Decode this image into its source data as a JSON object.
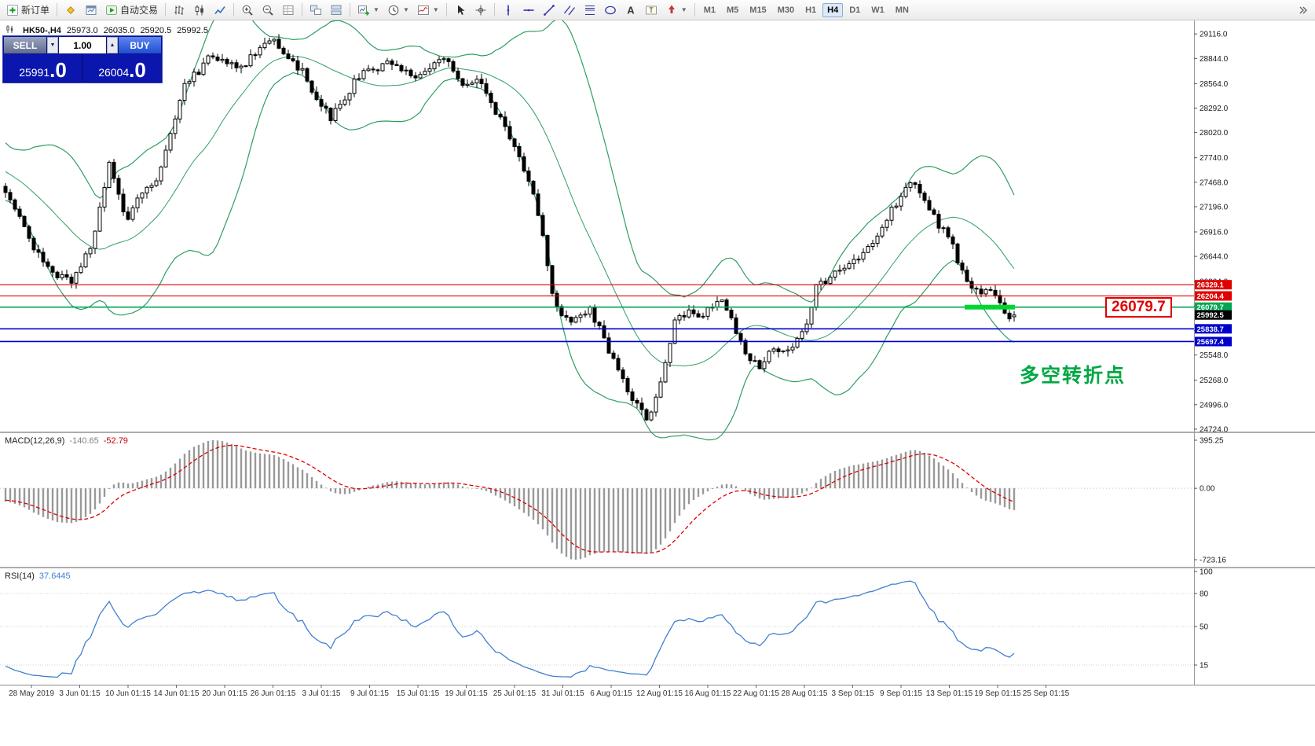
{
  "toolbar": {
    "groups": [
      [
        {
          "name": "new-order-button",
          "icon": "new-order",
          "label": "新订单"
        }
      ],
      [
        {
          "name": "metaeditor-button",
          "icon": "metaeditor"
        },
        {
          "name": "market-watch-button",
          "icon": "market-watch"
        },
        {
          "name": "autotrading-button",
          "icon": "autotrading",
          "label": "自动交易"
        }
      ],
      [
        {
          "name": "bar-chart-button",
          "icon": "bar-chart"
        },
        {
          "name": "candlestick-chart-button",
          "icon": "candlestick"
        },
        {
          "name": "line-chart-button",
          "icon": "line-chart"
        }
      ],
      [
        {
          "name": "zoom-in-button",
          "icon": "zoom-in"
        },
        {
          "name": "zoom-out-button",
          "icon": "zoom-out"
        },
        {
          "name": "indicator-list-button",
          "icon": "grid"
        }
      ],
      [
        {
          "name": "tile-windows-button",
          "icon": "tile-windows"
        },
        {
          "name": "cascade-windows-button",
          "icon": "cascade"
        }
      ],
      [
        {
          "name": "new-chart-button",
          "icon": "new-chart",
          "dropdown": true
        },
        {
          "name": "periods-button",
          "icon": "clock",
          "dropdown": true
        },
        {
          "name": "templates-button",
          "icon": "template",
          "dropdown": true
        }
      ],
      [
        {
          "name": "cursor-button",
          "icon": "cursor"
        },
        {
          "name": "crosshair-button",
          "icon": "crosshair"
        }
      ],
      [
        {
          "name": "vertical-line-button",
          "icon": "vertical-line"
        },
        {
          "name": "horizontal-line-button",
          "icon": "horizontal-line"
        },
        {
          "name": "trendline-button",
          "icon": "trendline"
        },
        {
          "name": "equidistant-channel-button",
          "icon": "channel"
        },
        {
          "name": "fibonacci-button",
          "icon": "fibonacci"
        },
        {
          "name": "shapes-button",
          "icon": "shapes"
        },
        {
          "name": "text-button",
          "icon": "text"
        },
        {
          "name": "text-label-button",
          "icon": "text-label"
        },
        {
          "name": "arrows-button",
          "icon": "arrows",
          "dropdown": true
        }
      ]
    ],
    "timeframes": [
      {
        "label": "M1"
      },
      {
        "label": "M5"
      },
      {
        "label": "M15"
      },
      {
        "label": "M30"
      },
      {
        "label": "H1"
      },
      {
        "label": "H4",
        "active": true
      },
      {
        "label": "D1"
      },
      {
        "label": "W1"
      },
      {
        "label": "MN"
      }
    ]
  },
  "trade_panel": {
    "sell_label": "SELL",
    "buy_label": "BUY",
    "volume": "1.00",
    "sell_price": {
      "head": "25991",
      "tail": ".0"
    },
    "buy_price": {
      "head": "26004",
      "tail": ".0"
    }
  },
  "chart": {
    "header": {
      "title": "HK50-,H4",
      "open": "25973.0",
      "high": "26035.0",
      "low": "25920.5",
      "close": "25992.5"
    }
  },
  "indicators": {
    "macd": {
      "label": "MACD(12,26,9)",
      "value_main": "-140.65",
      "value_signal": "-52.79"
    },
    "rsi": {
      "label": "RSI(14)",
      "value": "37.6445"
    }
  },
  "chart_data": {
    "type": "candlestick",
    "symbol": "HK50-",
    "timeframe": "H4",
    "ohlc_header": {
      "open": 25973.0,
      "high": 26035.0,
      "low": 25920.5,
      "close": 25992.5
    },
    "ylim": [
      24697,
      29266
    ],
    "bars_estimated": 215,
    "y_axis_ticks": [
      29116.0,
      28844.0,
      28564.0,
      28292.0,
      28020.0,
      27740.0,
      27468.0,
      27196.0,
      26916.0,
      26644.0,
      26364.0,
      26092.0,
      25820.0,
      25548.0,
      25268.0,
      24996.0,
      24724.0
    ],
    "x_axis_labels": [
      "28 May 2019",
      "3 Jun 01:15",
      "10 Jun 01:15",
      "14 Jun 01:15",
      "20 Jun 01:15",
      "26 Jun 01:15",
      "3 Jul 01:15",
      "9 Jul 01:15",
      "15 Jul 01:15",
      "19 Jul 01:15",
      "25 Jul 01:15",
      "31 Jul 01:15",
      "6 Aug 01:15",
      "12 Aug 01:15",
      "16 Aug 01:15",
      "22 Aug 01:15",
      "28 Aug 01:15",
      "3 Sep 01:15",
      "9 Sep 01:15",
      "13 Sep 01:15",
      "19 Sep 01:15",
      "25 Sep 01:15"
    ],
    "price_keyframes": [
      [
        -20,
        27950
      ],
      [
        -12,
        27600
      ],
      [
        0,
        27380
      ],
      [
        3,
        27100
      ],
      [
        6,
        26750
      ],
      [
        9,
        26500
      ],
      [
        12,
        26420
      ],
      [
        14,
        26380
      ],
      [
        16,
        26500
      ],
      [
        19,
        26900
      ],
      [
        22,
        27720
      ],
      [
        24,
        27300
      ],
      [
        26,
        27050
      ],
      [
        29,
        27350
      ],
      [
        32,
        27500
      ],
      [
        35,
        28000
      ],
      [
        38,
        28560
      ],
      [
        41,
        28700
      ],
      [
        44,
        28900
      ],
      [
        47,
        28780
      ],
      [
        50,
        28740
      ],
      [
        53,
        28900
      ],
      [
        57,
        29040
      ],
      [
        60,
        28870
      ],
      [
        63,
        28700
      ],
      [
        66,
        28400
      ],
      [
        69,
        28180
      ],
      [
        72,
        28420
      ],
      [
        75,
        28650
      ],
      [
        78,
        28720
      ],
      [
        82,
        28800
      ],
      [
        85,
        28700
      ],
      [
        88,
        28640
      ],
      [
        91,
        28760
      ],
      [
        93,
        28850
      ],
      [
        95,
        28700
      ],
      [
        97,
        28560
      ],
      [
        100,
        28600
      ],
      [
        102,
        28450
      ],
      [
        104,
        28250
      ],
      [
        106,
        28080
      ],
      [
        108,
        27900
      ],
      [
        110,
        27600
      ],
      [
        112,
        27350
      ],
      [
        114,
        26900
      ],
      [
        115,
        26550
      ],
      [
        116,
        26250
      ],
      [
        118,
        26000
      ],
      [
        120,
        25900
      ],
      [
        122,
        25980
      ],
      [
        124,
        26050
      ],
      [
        126,
        25850
      ],
      [
        128,
        25600
      ],
      [
        130,
        25350
      ],
      [
        132,
        25150
      ],
      [
        134,
        24980
      ],
      [
        136,
        24850
      ],
      [
        138,
        25050
      ],
      [
        140,
        25450
      ],
      [
        142,
        25900
      ],
      [
        144,
        26000
      ],
      [
        146,
        26020
      ],
      [
        148,
        25950
      ],
      [
        150,
        26120
      ],
      [
        152,
        26120
      ],
      [
        154,
        25950
      ],
      [
        156,
        25700
      ],
      [
        158,
        25500
      ],
      [
        160,
        25400
      ],
      [
        162,
        25550
      ],
      [
        164,
        25600
      ],
      [
        166,
        25600
      ],
      [
        168,
        25700
      ],
      [
        170,
        25900
      ],
      [
        172,
        26300
      ],
      [
        174,
        26380
      ],
      [
        176,
        26450
      ],
      [
        178,
        26520
      ],
      [
        180,
        26600
      ],
      [
        182,
        26700
      ],
      [
        184,
        26800
      ],
      [
        186,
        26950
      ],
      [
        188,
        27150
      ],
      [
        190,
        27300
      ],
      [
        192,
        27480
      ],
      [
        194,
        27380
      ],
      [
        196,
        27150
      ],
      [
        198,
        27000
      ],
      [
        200,
        26900
      ],
      [
        202,
        26600
      ],
      [
        204,
        26350
      ],
      [
        206,
        26250
      ],
      [
        208,
        26280
      ],
      [
        210,
        26200
      ],
      [
        212,
        25980
      ],
      [
        214,
        25992.5
      ]
    ],
    "levels": [
      {
        "price": 26329.1,
        "label": "26329.1",
        "color": "#e10000",
        "width": 1.2,
        "style": "solid"
      },
      {
        "price": 26204.4,
        "label": "26204.4",
        "color": "#e10000",
        "width": 1.2,
        "style": "solid"
      },
      {
        "price": 26079.7,
        "label": "26079.7",
        "color": "#00a651",
        "width": 1.6,
        "style": "solid",
        "highlight_segment": true
      },
      {
        "price": 25992.5,
        "label": "25992.5",
        "color": "#000000",
        "style": "tag-only"
      },
      {
        "price": 25838.7,
        "label": "25838.7",
        "color": "#0000cd",
        "width": 1.6,
        "style": "solid"
      },
      {
        "price": 25697.4,
        "label": "25697.4",
        "color": "#0000cd",
        "width": 1.6,
        "style": "solid"
      }
    ],
    "highlight_color": "#00d62e",
    "indicators": [
      {
        "name": "Bollinger Bands",
        "period": 20,
        "deviation": 2,
        "color": "#2f9e63"
      },
      {
        "name": "MACD",
        "fast": 12,
        "slow": 26,
        "signal": 9,
        "value_main": -140.65,
        "value_signal": -52.79,
        "y_ticks": [
          395.25,
          0.0,
          -723.16
        ],
        "histogram_color": "#999999",
        "signal_color": "#dd0000"
      },
      {
        "name": "RSI",
        "period": 14,
        "value": 37.6445,
        "y_ticks": [
          100,
          80,
          50,
          15
        ],
        "levels": [
          80,
          50,
          15
        ],
        "color": "#4080d0"
      }
    ],
    "callout": {
      "text": "26079.7",
      "color": "#e10000"
    },
    "annotation": {
      "text": "多空转折点",
      "color": "#00a843"
    }
  }
}
